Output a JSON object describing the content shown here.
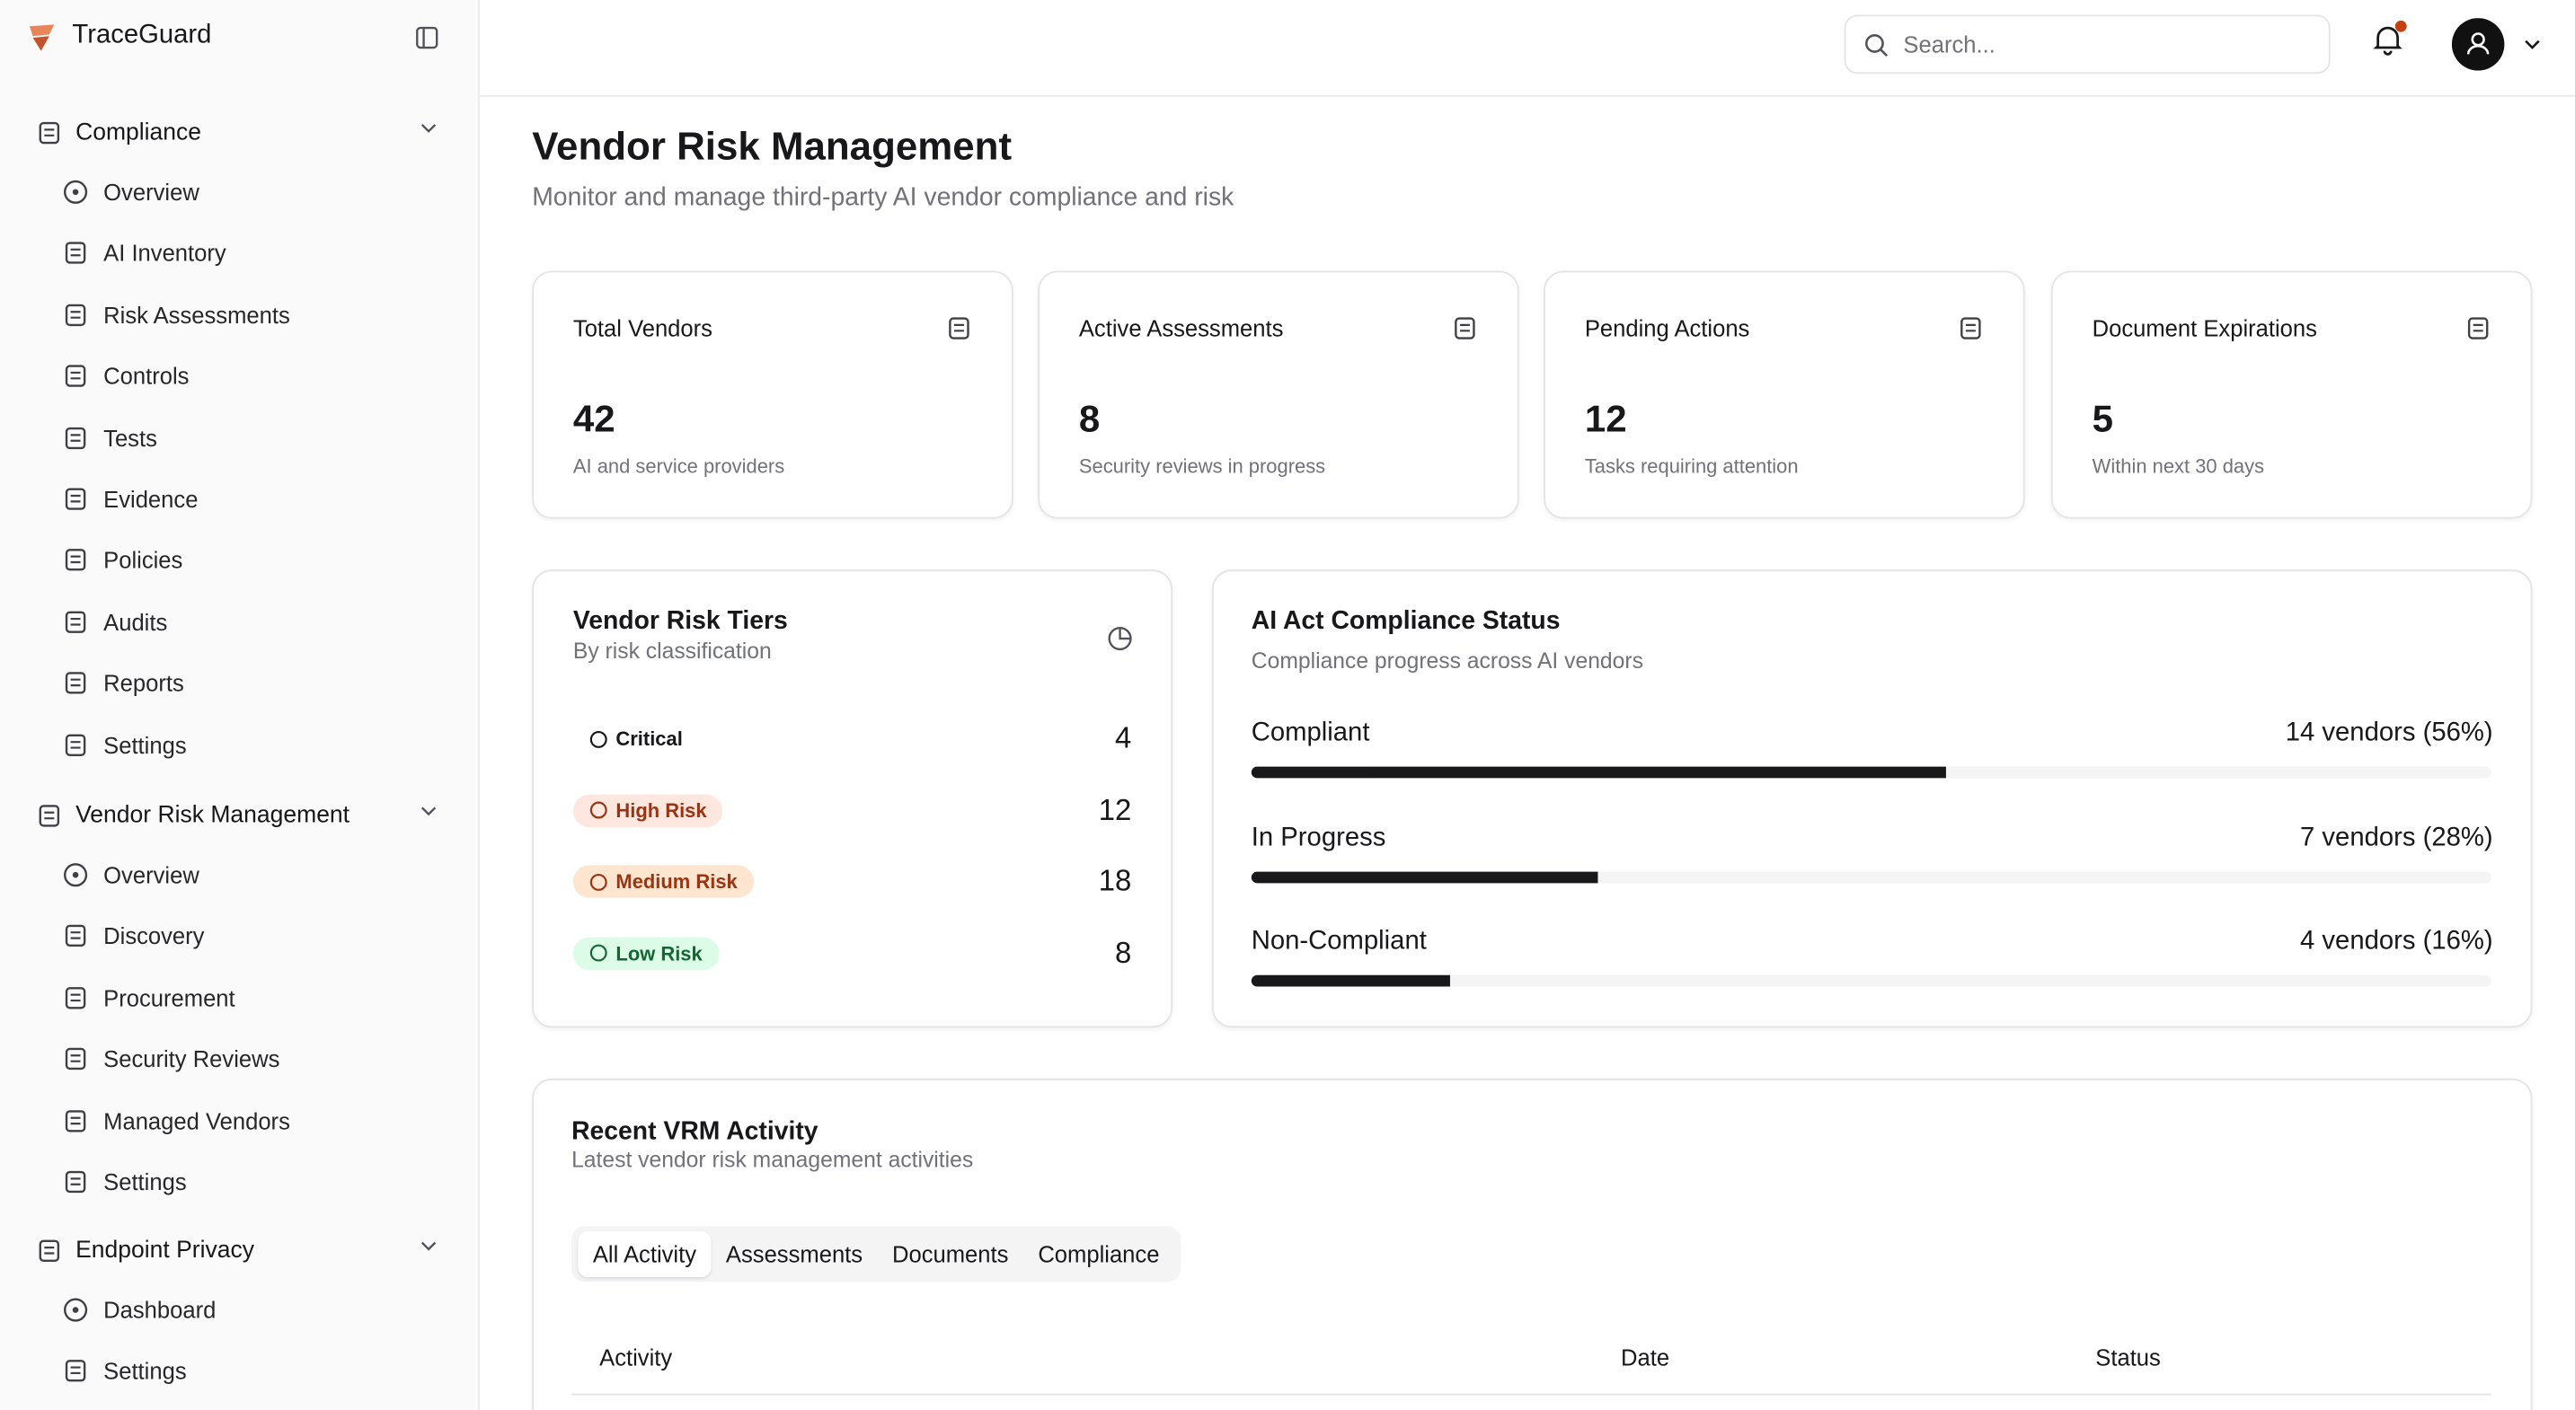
{
  "sidebar": {
    "brand": "TraceGuard",
    "sections": [
      {
        "title": "Compliance",
        "items": [
          "Overview",
          "AI Inventory",
          "Risk Assessments",
          "Controls",
          "Tests",
          "Evidence",
          "Policies",
          "Audits",
          "Reports",
          "Settings"
        ]
      },
      {
        "title": "Vendor Risk Management",
        "items": [
          "Overview",
          "Discovery",
          "Procurement",
          "Security Reviews",
          "Managed Vendors",
          "Settings"
        ]
      },
      {
        "title": "Endpoint Privacy",
        "items": [
          "Dashboard",
          "Settings"
        ]
      }
    ]
  },
  "header": {
    "search_placeholder": "Search..."
  },
  "page": {
    "title": "Vendor Risk Management",
    "subtitle": "Monitor and manage third-party AI vendor compliance and risk"
  },
  "stats": [
    {
      "title": "Total Vendors",
      "value": 42,
      "note": "AI and service providers"
    },
    {
      "title": "Active Assessments",
      "value": 8,
      "note": "Security reviews in progress"
    },
    {
      "title": "Pending Actions",
      "value": 12,
      "note": "Tasks requiring attention"
    },
    {
      "title": "Document Expirations",
      "value": 5,
      "note": "Within next 30 days"
    }
  ],
  "risk_tiers": {
    "title": "Vendor Risk Tiers",
    "subtitle": "By risk classification",
    "tiers": [
      {
        "label": "Critical",
        "count": 4
      },
      {
        "label": "High Risk",
        "count": 12
      },
      {
        "label": "Medium Risk",
        "count": 18
      },
      {
        "label": "Low Risk",
        "count": 8
      }
    ]
  },
  "compliance": {
    "title": "AI Act Compliance Status",
    "subtitle": "Compliance progress across AI vendors",
    "rows": [
      {
        "label": "Compliant",
        "summary": "14 vendors (56%)",
        "percent": 56
      },
      {
        "label": "In Progress",
        "summary": "7 vendors (28%)",
        "percent": 28
      },
      {
        "label": "Non-Compliant",
        "summary": "4 vendors (16%)",
        "percent": 16
      }
    ]
  },
  "activity": {
    "title": "Recent VRM Activity",
    "subtitle": "Latest vendor risk management activities",
    "tabs": [
      "All Activity",
      "Assessments",
      "Documents",
      "Compliance"
    ],
    "columns": [
      "Activity",
      "Date",
      "Status"
    ]
  }
}
